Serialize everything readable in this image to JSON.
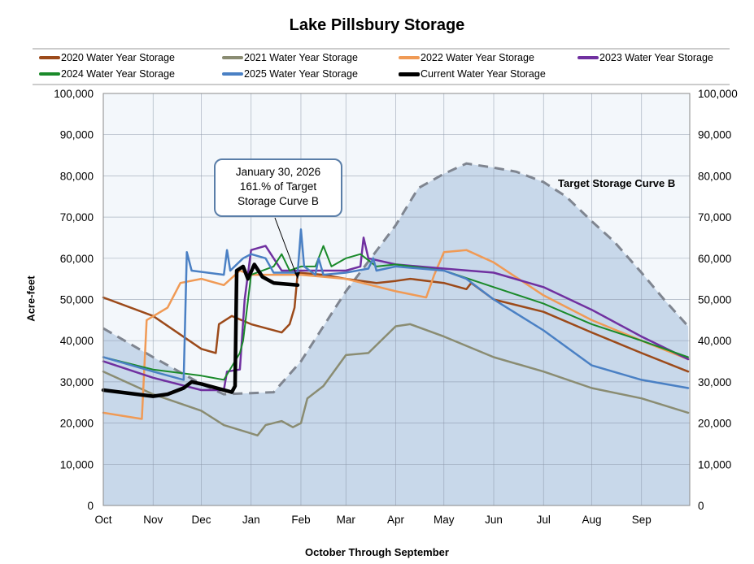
{
  "chart_data": {
    "type": "line",
    "title": "Lake Pillsbury Storage",
    "xlabel": "October Through September",
    "ylabel": "Acre-feet",
    "ylim": [
      0,
      100000
    ],
    "yticks": [
      "0",
      "10,000",
      "20,000",
      "30,000",
      "40,000",
      "50,000",
      "60,000",
      "70,000",
      "80,000",
      "90,000",
      "100,000"
    ],
    "xticks": [
      "Oct",
      "Nov",
      "Dec",
      "Jan",
      "Feb",
      "Mar",
      "Apr",
      "May",
      "Jun",
      "Jul",
      "Aug",
      "Sep"
    ],
    "grid": true,
    "legend_position": "top",
    "annotation": {
      "line1": "January 30, 2026",
      "line2": "161.% of Target",
      "line3": "Storage Curve B",
      "x": "01-30",
      "y": 53500
    },
    "target_curve": {
      "name": "Target Storage Curve B",
      "color": "#7f8590",
      "fill_color": "#c8d8ea",
      "x": [
        "10-01",
        "11-01",
        "12-01",
        "12-15",
        "01-15",
        "02-01",
        "03-01",
        "04-01",
        "04-15",
        "05-01",
        "05-15",
        "06-01",
        "06-15",
        "07-01",
        "07-15",
        "08-01",
        "08-15",
        "09-01",
        "09-15",
        "09-30"
      ],
      "y": [
        43000,
        36000,
        29500,
        27000,
        27500,
        35000,
        52000,
        68000,
        77000,
        80500,
        83000,
        82000,
        81000,
        78500,
        75000,
        69000,
        64000,
        56500,
        50000,
        43500
      ]
    },
    "series": [
      {
        "name": "2020 Water Year Storage",
        "color": "#9c4a1a",
        "width": 2.5,
        "x": [
          "10-01",
          "11-01",
          "12-01",
          "12-10",
          "12-12",
          "12-20",
          "01-01",
          "01-20",
          "01-25",
          "01-28",
          "01-30",
          "02-15",
          "03-01",
          "03-20",
          "04-01",
          "04-10",
          "05-01",
          "05-15",
          "05-18",
          "06-01",
          "07-01",
          "08-01",
          "09-01",
          "09-30"
        ],
        "y": [
          50500,
          46000,
          38000,
          37000,
          44000,
          46000,
          44000,
          42000,
          44000,
          48000,
          56500,
          56000,
          55000,
          54000,
          54500,
          55000,
          54000,
          52500,
          54000,
          50000,
          47000,
          42000,
          37000,
          32500
        ]
      },
      {
        "name": "2021 Water Year Storage",
        "color": "#8a8c72",
        "width": 2.5,
        "x": [
          "10-01",
          "11-01",
          "12-01",
          "12-15",
          "01-01",
          "01-05",
          "01-10",
          "01-20",
          "01-27",
          "02-01",
          "02-05",
          "02-15",
          "03-01",
          "03-15",
          "04-01",
          "04-10",
          "05-01",
          "06-01",
          "07-01",
          "08-01",
          "09-01",
          "09-30"
        ],
        "y": [
          32500,
          27000,
          23000,
          19500,
          17500,
          17000,
          19500,
          20500,
          19000,
          20000,
          26000,
          29000,
          36500,
          37000,
          43500,
          44000,
          41000,
          36000,
          32500,
          28500,
          26000,
          22500
        ]
      },
      {
        "name": "2022 Water Year Storage",
        "color": "#f09a55",
        "width": 2.5,
        "x": [
          "10-01",
          "10-25",
          "10-28",
          "11-10",
          "11-18",
          "12-01",
          "12-15",
          "12-25",
          "01-01",
          "02-01",
          "03-01",
          "04-01",
          "04-20",
          "04-25",
          "05-01",
          "05-15",
          "06-01",
          "07-01",
          "08-01",
          "09-01",
          "09-30"
        ],
        "y": [
          22500,
          21000,
          45000,
          48000,
          54000,
          55000,
          53500,
          57000,
          56000,
          56000,
          55000,
          52000,
          50500,
          56000,
          61500,
          62000,
          59000,
          51000,
          45000,
          40000,
          35500
        ]
      },
      {
        "name": "2023 Water Year Storage",
        "color": "#7030a0",
        "width": 2.5,
        "x": [
          "10-01",
          "11-01",
          "12-01",
          "12-15",
          "12-17",
          "12-25",
          "12-28",
          "01-01",
          "01-10",
          "01-20",
          "02-01",
          "03-01",
          "03-10",
          "03-12",
          "03-15",
          "04-01",
          "05-01",
          "06-01",
          "07-01",
          "08-01",
          "09-01",
          "09-30"
        ],
        "y": [
          35000,
          31000,
          28000,
          28000,
          32500,
          33000,
          50000,
          62000,
          63000,
          57000,
          57000,
          57000,
          58000,
          65000,
          60000,
          58500,
          57500,
          56500,
          53000,
          47500,
          41000,
          35500
        ]
      },
      {
        "name": "2024 Water Year Storage",
        "color": "#1a8a2a",
        "width": 2,
        "x": [
          "10-01",
          "11-01",
          "12-01",
          "12-15",
          "12-25",
          "12-27",
          "01-01",
          "01-15",
          "01-20",
          "01-25",
          "02-01",
          "02-10",
          "02-15",
          "02-20",
          "03-01",
          "03-10",
          "03-20",
          "04-01",
          "05-01",
          "06-01",
          "07-01",
          "08-01",
          "09-01",
          "09-30"
        ],
        "y": [
          36000,
          33000,
          31500,
          30500,
          37000,
          40000,
          56000,
          58000,
          61000,
          57000,
          58000,
          58000,
          63000,
          58000,
          60000,
          61000,
          58000,
          58500,
          57000,
          53000,
          49000,
          44000,
          40000,
          36000
        ]
      },
      {
        "name": "2025 Water Year Storage",
        "color": "#4a80c4",
        "width": 2.5,
        "x": [
          "10-01",
          "11-01",
          "11-20",
          "11-22",
          "11-25",
          "12-15",
          "12-17",
          "12-19",
          "12-27",
          "01-01",
          "01-10",
          "01-15",
          "01-30",
          "02-01",
          "02-03",
          "02-10",
          "02-12",
          "02-15",
          "03-01",
          "03-15",
          "03-18",
          "03-20",
          "04-01",
          "05-01",
          "05-15",
          "06-01",
          "07-01",
          "08-01",
          "09-01",
          "09-30"
        ],
        "y": [
          36000,
          32500,
          30500,
          61500,
          57000,
          56000,
          62000,
          57000,
          60000,
          61000,
          60000,
          56500,
          56500,
          67000,
          58000,
          56000,
          60000,
          56000,
          56500,
          57500,
          60000,
          57000,
          58000,
          57000,
          55000,
          50000,
          42500,
          34000,
          30500,
          28500
        ]
      },
      {
        "name": "Current Water Year Storage",
        "color": "#000000",
        "width": 4.5,
        "x": [
          "10-01",
          "11-01",
          "11-10",
          "11-20",
          "11-25",
          "12-01",
          "12-20",
          "12-22",
          "12-23",
          "12-27",
          "12-30",
          "01-03",
          "01-08",
          "01-15",
          "01-30"
        ],
        "y": [
          28000,
          26500,
          27000,
          28500,
          30000,
          29500,
          27500,
          29000,
          57000,
          58000,
          55000,
          58500,
          55500,
          54000,
          53500
        ]
      }
    ]
  }
}
